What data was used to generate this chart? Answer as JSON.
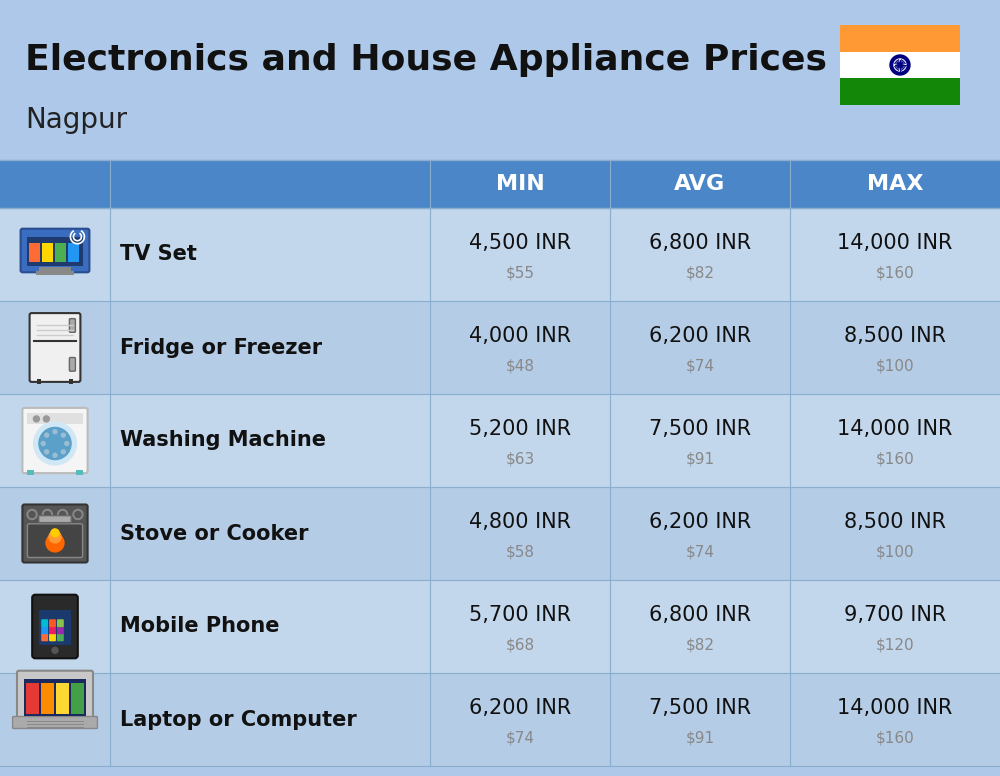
{
  "title": "Electronics and House Appliance Prices",
  "subtitle": "Nagpur",
  "background_color": "#adc8e8",
  "header_bg_color": "#4a86c8",
  "header_text_color": "#ffffff",
  "row_bg_color_even": "#c2d6ec",
  "row_bg_color_odd": "#b4cce6",
  "divider_color": "#8aaece",
  "columns": [
    "MIN",
    "AVG",
    "MAX"
  ],
  "rows": [
    {
      "label": "TV Set",
      "min_inr": "4,500 INR",
      "min_usd": "$55",
      "avg_inr": "6,800 INR",
      "avg_usd": "$82",
      "max_inr": "14,000 INR",
      "max_usd": "$160"
    },
    {
      "label": "Fridge or Freezer",
      "min_inr": "4,000 INR",
      "min_usd": "$48",
      "avg_inr": "6,200 INR",
      "avg_usd": "$74",
      "max_inr": "8,500 INR",
      "max_usd": "$100"
    },
    {
      "label": "Washing Machine",
      "min_inr": "5,200 INR",
      "min_usd": "$63",
      "avg_inr": "7,500 INR",
      "avg_usd": "$91",
      "max_inr": "14,000 INR",
      "max_usd": "$160"
    },
    {
      "label": "Stove or Cooker",
      "min_inr": "4,800 INR",
      "min_usd": "$58",
      "avg_inr": "6,200 INR",
      "avg_usd": "$74",
      "max_inr": "8,500 INR",
      "max_usd": "$100"
    },
    {
      "label": "Mobile Phone",
      "min_inr": "5,700 INR",
      "min_usd": "$68",
      "avg_inr": "6,800 INR",
      "avg_usd": "$82",
      "max_inr": "9,700 INR",
      "max_usd": "$120"
    },
    {
      "label": "Laptop or Computer",
      "min_inr": "6,200 INR",
      "min_usd": "$74",
      "avg_inr": "7,500 INR",
      "avg_usd": "$91",
      "max_inr": "14,000 INR",
      "max_usd": "$160"
    }
  ],
  "title_fontsize": 26,
  "subtitle_fontsize": 20,
  "header_fontsize": 16,
  "label_fontsize": 15,
  "value_fontsize": 15,
  "usd_fontsize": 11,
  "usd_color": "#888888",
  "flag_orange": "#FF9933",
  "flag_white": "#FFFFFF",
  "flag_green": "#138808",
  "flag_navy": "#000080"
}
